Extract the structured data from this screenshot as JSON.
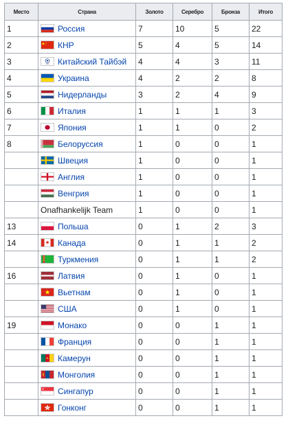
{
  "headers": [
    "Место",
    "Страна",
    "Золото",
    "Серебро",
    "Бронза",
    "Итого"
  ],
  "rows": [
    {
      "rank": "1",
      "country": "Россия",
      "flag": "russia",
      "gold": "7",
      "silver": "10",
      "bronze": "5",
      "total": "22"
    },
    {
      "rank": "2",
      "country": "КНР",
      "flag": "china",
      "gold": "5",
      "silver": "4",
      "bronze": "5",
      "total": "14"
    },
    {
      "rank": "3",
      "country": "Китайский Тайбэй",
      "flag": "chinese-taipei",
      "gold": "4",
      "silver": "4",
      "bronze": "3",
      "total": "11"
    },
    {
      "rank": "4",
      "country": "Украина",
      "flag": "ukraine",
      "gold": "4",
      "silver": "2",
      "bronze": "2",
      "total": "8"
    },
    {
      "rank": "5",
      "country": "Нидерланды",
      "flag": "netherlands",
      "gold": "3",
      "silver": "2",
      "bronze": "4",
      "total": "9"
    },
    {
      "rank": "6",
      "country": "Италия",
      "flag": "italy",
      "gold": "1",
      "silver": "1",
      "bronze": "1",
      "total": "3"
    },
    {
      "rank": "7",
      "country": "Япония",
      "flag": "japan",
      "gold": "1",
      "silver": "1",
      "bronze": "0",
      "total": "2"
    },
    {
      "rank": "8",
      "country": "Белоруссия",
      "flag": "belarus",
      "gold": "1",
      "silver": "0",
      "bronze": "0",
      "total": "1"
    },
    {
      "rank": "",
      "country": "Швеция",
      "flag": "sweden",
      "gold": "1",
      "silver": "0",
      "bronze": "0",
      "total": "1"
    },
    {
      "rank": "",
      "country": "Англия",
      "flag": "england",
      "gold": "1",
      "silver": "0",
      "bronze": "0",
      "total": "1"
    },
    {
      "rank": "",
      "country": "Венгрия",
      "flag": "hungary",
      "gold": "1",
      "silver": "0",
      "bronze": "0",
      "total": "1"
    },
    {
      "rank": "",
      "country": "Onafhankelijk Team",
      "flag": "",
      "gold": "1",
      "silver": "0",
      "bronze": "0",
      "total": "1"
    },
    {
      "rank": "13",
      "country": "Польша",
      "flag": "poland",
      "gold": "0",
      "silver": "1",
      "bronze": "2",
      "total": "3"
    },
    {
      "rank": "14",
      "country": "Канада",
      "flag": "canada",
      "gold": "0",
      "silver": "1",
      "bronze": "1",
      "total": "2"
    },
    {
      "rank": "",
      "country": "Туркмения",
      "flag": "turkmenistan",
      "gold": "0",
      "silver": "1",
      "bronze": "1",
      "total": "2"
    },
    {
      "rank": "16",
      "country": "Латвия",
      "flag": "latvia",
      "gold": "0",
      "silver": "1",
      "bronze": "0",
      "total": "1"
    },
    {
      "rank": "",
      "country": "Вьетнам",
      "flag": "vietnam",
      "gold": "0",
      "silver": "1",
      "bronze": "0",
      "total": "1"
    },
    {
      "rank": "",
      "country": "США",
      "flag": "usa",
      "gold": "0",
      "silver": "1",
      "bronze": "0",
      "total": "1"
    },
    {
      "rank": "19",
      "country": "Монако",
      "flag": "monaco",
      "gold": "0",
      "silver": "0",
      "bronze": "1",
      "total": "1"
    },
    {
      "rank": "",
      "country": "Франция",
      "flag": "france",
      "gold": "0",
      "silver": "0",
      "bronze": "1",
      "total": "1"
    },
    {
      "rank": "",
      "country": "Камерун",
      "flag": "cameroon",
      "gold": "0",
      "silver": "0",
      "bronze": "1",
      "total": "1"
    },
    {
      "rank": "",
      "country": "Монголия",
      "flag": "mongolia",
      "gold": "0",
      "silver": "0",
      "bronze": "1",
      "total": "1"
    },
    {
      "rank": "",
      "country": "Сингапур",
      "flag": "singapore",
      "gold": "0",
      "silver": "0",
      "bronze": "1",
      "total": "1"
    },
    {
      "rank": "",
      "country": "Гонконг",
      "flag": "hong-kong",
      "gold": "0",
      "silver": "0",
      "bronze": "1",
      "total": "1"
    }
  ]
}
